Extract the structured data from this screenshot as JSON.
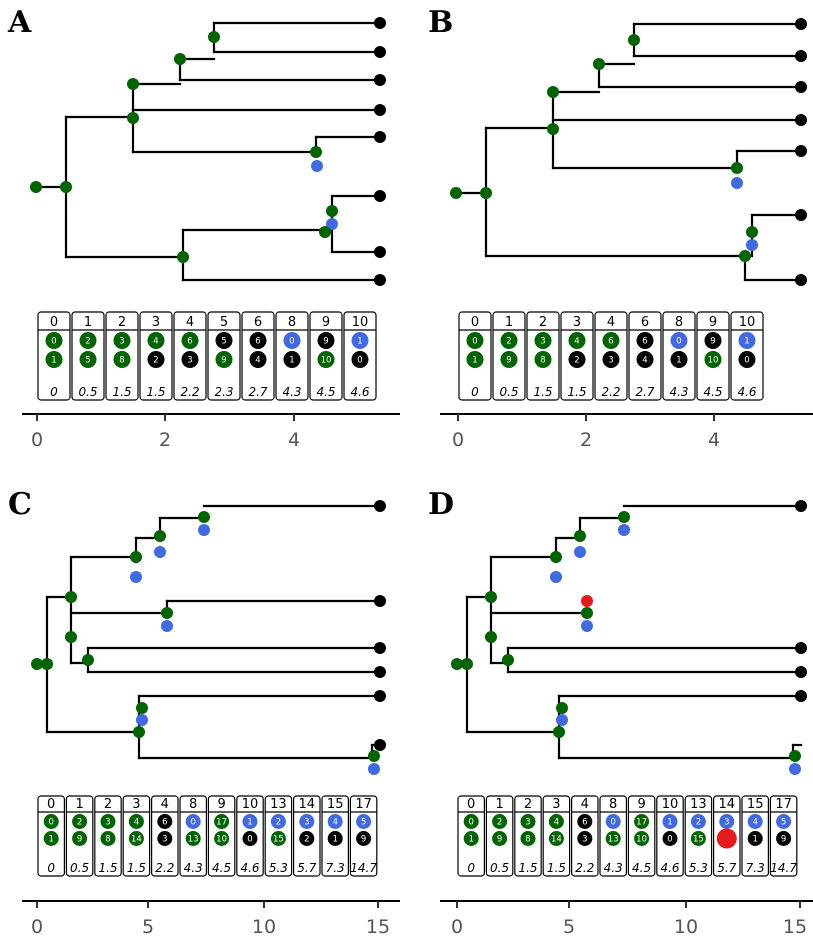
{
  "colors": {
    "green": "#006400",
    "blue": "#4169E1",
    "black": "#000000",
    "red": "#E41A1C",
    "axis_text": "#555555"
  },
  "panels": [
    {
      "letter": "A",
      "ticks": [
        "0",
        "2",
        "4"
      ],
      "columns": [
        {
          "header": "0",
          "top": {
            "n": "0",
            "c": "green"
          },
          "bottom": {
            "n": "1",
            "c": "green"
          },
          "time": "0"
        },
        {
          "header": "1",
          "top": {
            "n": "2",
            "c": "green"
          },
          "bottom": {
            "n": "5",
            "c": "green"
          },
          "time": "0.5"
        },
        {
          "header": "2",
          "top": {
            "n": "3",
            "c": "green"
          },
          "bottom": {
            "n": "8",
            "c": "green"
          },
          "time": "1.5"
        },
        {
          "header": "3",
          "top": {
            "n": "4",
            "c": "green"
          },
          "bottom": {
            "n": "2",
            "c": "black"
          },
          "time": "1.5"
        },
        {
          "header": "4",
          "top": {
            "n": "6",
            "c": "green"
          },
          "bottom": {
            "n": "3",
            "c": "black"
          },
          "time": "2.2"
        },
        {
          "header": "5",
          "top": {
            "n": "5",
            "c": "black"
          },
          "bottom": {
            "n": "9",
            "c": "green"
          },
          "time": "2.3"
        },
        {
          "header": "6",
          "top": {
            "n": "6",
            "c": "black"
          },
          "bottom": {
            "n": "4",
            "c": "black"
          },
          "time": "2.7"
        },
        {
          "header": "8",
          "top": {
            "n": "0",
            "c": "blue"
          },
          "bottom": {
            "n": "1",
            "c": "black"
          },
          "time": "4.3"
        },
        {
          "header": "9",
          "top": {
            "n": "9",
            "c": "black"
          },
          "bottom": {
            "n": "10",
            "c": "green"
          },
          "time": "4.5"
        },
        {
          "header": "10",
          "top": {
            "n": "1",
            "c": "blue"
          },
          "bottom": {
            "n": "0",
            "c": "black"
          },
          "time": "4.6"
        }
      ]
    },
    {
      "letter": "B",
      "ticks": [
        "0",
        "2",
        "4"
      ],
      "columns": [
        {
          "header": "0",
          "top": {
            "n": "0",
            "c": "green"
          },
          "bottom": {
            "n": "1",
            "c": "green"
          },
          "time": "0"
        },
        {
          "header": "1",
          "top": {
            "n": "2",
            "c": "green"
          },
          "bottom": {
            "n": "9",
            "c": "green"
          },
          "time": "0.5"
        },
        {
          "header": "2",
          "top": {
            "n": "3",
            "c": "green"
          },
          "bottom": {
            "n": "8",
            "c": "green"
          },
          "time": "1.5"
        },
        {
          "header": "3",
          "top": {
            "n": "4",
            "c": "green"
          },
          "bottom": {
            "n": "2",
            "c": "black"
          },
          "time": "1.5"
        },
        {
          "header": "4",
          "top": {
            "n": "6",
            "c": "green"
          },
          "bottom": {
            "n": "3",
            "c": "black"
          },
          "time": "2.2"
        },
        {
          "header": "6",
          "top": {
            "n": "6",
            "c": "black"
          },
          "bottom": {
            "n": "4",
            "c": "black"
          },
          "time": "2.7"
        },
        {
          "header": "8",
          "top": {
            "n": "0",
            "c": "blue"
          },
          "bottom": {
            "n": "1",
            "c": "black"
          },
          "time": "4.3"
        },
        {
          "header": "9",
          "top": {
            "n": "9",
            "c": "black"
          },
          "bottom": {
            "n": "10",
            "c": "green"
          },
          "time": "4.5"
        },
        {
          "header": "10",
          "top": {
            "n": "1",
            "c": "blue"
          },
          "bottom": {
            "n": "0",
            "c": "black"
          },
          "time": "4.6"
        }
      ]
    },
    {
      "letter": "C",
      "ticks": [
        "0",
        "5",
        "10",
        "15"
      ],
      "columns": [
        {
          "header": "0",
          "top": {
            "n": "0",
            "c": "green"
          },
          "bottom": {
            "n": "1",
            "c": "green"
          },
          "time": "0"
        },
        {
          "header": "1",
          "top": {
            "n": "2",
            "c": "green"
          },
          "bottom": {
            "n": "9",
            "c": "green"
          },
          "time": "0.5"
        },
        {
          "header": "2",
          "top": {
            "n": "3",
            "c": "green"
          },
          "bottom": {
            "n": "8",
            "c": "green"
          },
          "time": "1.5"
        },
        {
          "header": "3",
          "top": {
            "n": "4",
            "c": "green"
          },
          "bottom": {
            "n": "14",
            "c": "green"
          },
          "time": "1.5"
        },
        {
          "header": "4",
          "top": {
            "n": "6",
            "c": "black"
          },
          "bottom": {
            "n": "3",
            "c": "black"
          },
          "time": "2.2"
        },
        {
          "header": "8",
          "top": {
            "n": "0",
            "c": "blue"
          },
          "bottom": {
            "n": "13",
            "c": "green"
          },
          "time": "4.3"
        },
        {
          "header": "9",
          "top": {
            "n": "17",
            "c": "green"
          },
          "bottom": {
            "n": "10",
            "c": "green"
          },
          "time": "4.5"
        },
        {
          "header": "10",
          "top": {
            "n": "1",
            "c": "blue"
          },
          "bottom": {
            "n": "0",
            "c": "black"
          },
          "time": "4.6"
        },
        {
          "header": "13",
          "top": {
            "n": "2",
            "c": "blue"
          },
          "bottom": {
            "n": "15",
            "c": "green"
          },
          "time": "5.3"
        },
        {
          "header": "14",
          "top": {
            "n": "3",
            "c": "blue"
          },
          "bottom": {
            "n": "2",
            "c": "black"
          },
          "time": "5.7"
        },
        {
          "header": "15",
          "top": {
            "n": "4",
            "c": "blue"
          },
          "bottom": {
            "n": "1",
            "c": "black"
          },
          "time": "7.3"
        },
        {
          "header": "17",
          "top": {
            "n": "5",
            "c": "blue"
          },
          "bottom": {
            "n": "9",
            "c": "black"
          },
          "time": "14.7"
        }
      ]
    },
    {
      "letter": "D",
      "ticks": [
        "0",
        "5",
        "10",
        "15"
      ],
      "columns": [
        {
          "header": "0",
          "top": {
            "n": "0",
            "c": "green"
          },
          "bottom": {
            "n": "1",
            "c": "green"
          },
          "time": "0"
        },
        {
          "header": "1",
          "top": {
            "n": "2",
            "c": "green"
          },
          "bottom": {
            "n": "9",
            "c": "green"
          },
          "time": "0.5"
        },
        {
          "header": "2",
          "top": {
            "n": "3",
            "c": "green"
          },
          "bottom": {
            "n": "8",
            "c": "green"
          },
          "time": "1.5"
        },
        {
          "header": "3",
          "top": {
            "n": "4",
            "c": "green"
          },
          "bottom": {
            "n": "14",
            "c": "green"
          },
          "time": "1.5"
        },
        {
          "header": "4",
          "top": {
            "n": "6",
            "c": "black"
          },
          "bottom": {
            "n": "3",
            "c": "black"
          },
          "time": "2.2"
        },
        {
          "header": "8",
          "top": {
            "n": "0",
            "c": "blue"
          },
          "bottom": {
            "n": "13",
            "c": "green"
          },
          "time": "4.3"
        },
        {
          "header": "9",
          "top": {
            "n": "17",
            "c": "green"
          },
          "bottom": {
            "n": "10",
            "c": "green"
          },
          "time": "4.5"
        },
        {
          "header": "10",
          "top": {
            "n": "1",
            "c": "blue"
          },
          "bottom": {
            "n": "0",
            "c": "black"
          },
          "time": "4.6"
        },
        {
          "header": "13",
          "top": {
            "n": "2",
            "c": "blue"
          },
          "bottom": {
            "n": "15",
            "c": "green"
          },
          "time": "5.3"
        },
        {
          "header": "14",
          "top": {
            "n": "3",
            "c": "blue"
          },
          "bottom": {
            "n": "",
            "c": "red"
          },
          "time": "5.7"
        },
        {
          "header": "15",
          "top": {
            "n": "4",
            "c": "blue"
          },
          "bottom": {
            "n": "1",
            "c": "black"
          },
          "time": "7.3"
        },
        {
          "header": "17",
          "top": {
            "n": "5",
            "c": "blue"
          },
          "bottom": {
            "n": "9",
            "c": "black"
          },
          "time": "14.7"
        }
      ]
    }
  ]
}
